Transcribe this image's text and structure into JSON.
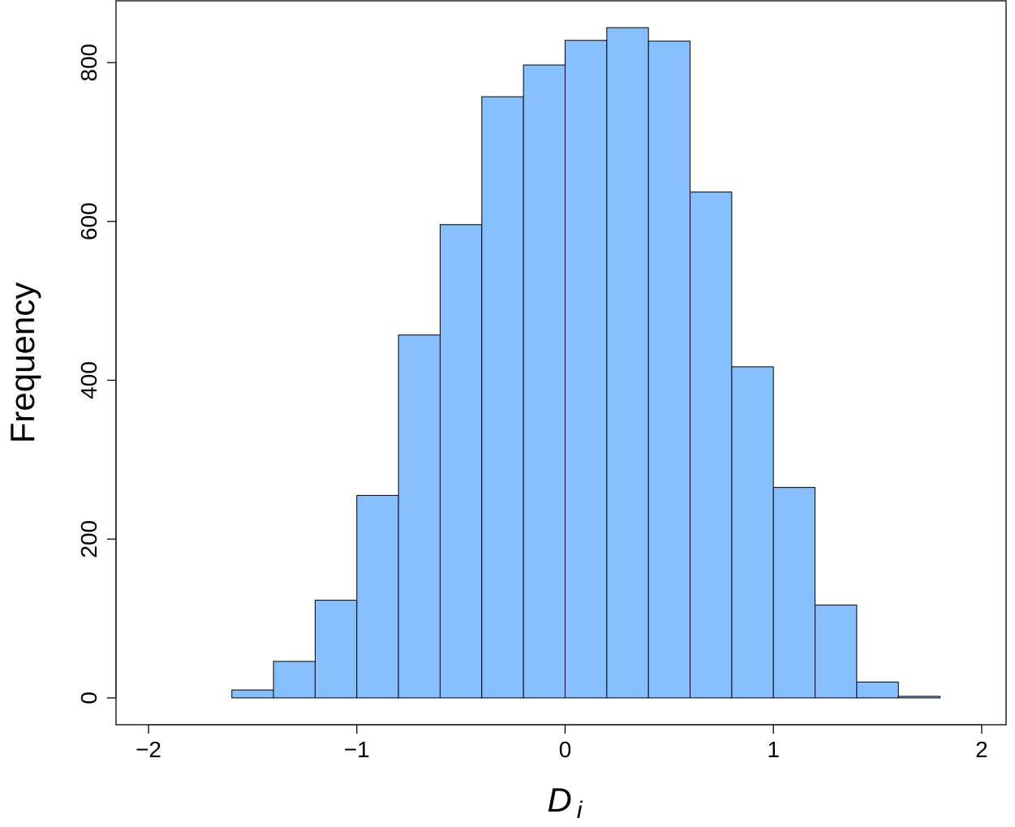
{
  "chart_data": {
    "type": "histogram",
    "xlabel": [
      "D",
      "i"
    ],
    "ylabel": "Frequency",
    "bins": [
      -1.6,
      -1.4,
      -1.2,
      -1.0,
      -0.8,
      -0.6,
      -0.4,
      -0.2,
      0,
      0.2,
      0.4,
      0.6,
      0.8,
      1.0,
      1.2,
      1.4,
      1.6,
      1.8
    ],
    "values": [
      10,
      46,
      123,
      255,
      457,
      596,
      757,
      797,
      828,
      844,
      827,
      637,
      417,
      265,
      117,
      20,
      2
    ],
    "color": "#85bfff",
    "xlim": [
      -2.156,
      2.117
    ],
    "ylim": [
      -33.8,
      877.8
    ],
    "xticks": [
      {
        "value": -2,
        "label": "−2"
      },
      {
        "value": -1,
        "label": "−1"
      },
      0,
      1,
      2
    ],
    "yticks": [
      0,
      200,
      400,
      600,
      800
    ]
  }
}
